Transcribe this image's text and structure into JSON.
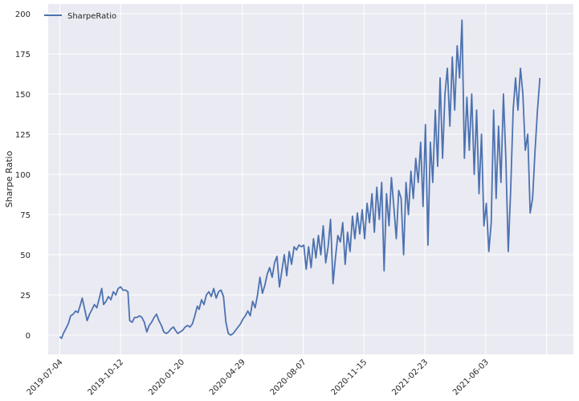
{
  "chart_data": {
    "type": "line",
    "title": "",
    "xlabel": "",
    "ylabel": "Sharpe Ratio",
    "grid": true,
    "legend_position": "top-left",
    "x_tick_labels": [
      "2019-07-04",
      "2019-10-12",
      "2020-01-20",
      "2020-04-29",
      "2020-08-07",
      "2020-11-15",
      "2021-02-23",
      "2021-06-03"
    ],
    "y_ticks": [
      0,
      25,
      50,
      75,
      100,
      125,
      150,
      175,
      200
    ],
    "xlim": [
      "2019-06-15",
      "2021-10-25"
    ],
    "ylim": [
      -12,
      206
    ],
    "series": [
      {
        "name": "SharpeRatio",
        "color": "#4c72b0",
        "points": [
          [
            "2019-07-04",
            -1
          ],
          [
            "2019-07-07",
            -2
          ],
          [
            "2019-07-10",
            1
          ],
          [
            "2019-07-14",
            4
          ],
          [
            "2019-07-18",
            7
          ],
          [
            "2019-07-22",
            12
          ],
          [
            "2019-07-26",
            13
          ],
          [
            "2019-07-30",
            15
          ],
          [
            "2019-08-03",
            14
          ],
          [
            "2019-08-07",
            19
          ],
          [
            "2019-08-10",
            23
          ],
          [
            "2019-08-14",
            16
          ],
          [
            "2019-08-18",
            9
          ],
          [
            "2019-08-22",
            13
          ],
          [
            "2019-08-26",
            16
          ],
          [
            "2019-08-30",
            19
          ],
          [
            "2019-09-03",
            17
          ],
          [
            "2019-09-07",
            23
          ],
          [
            "2019-09-11",
            29
          ],
          [
            "2019-09-14",
            19
          ],
          [
            "2019-09-18",
            21
          ],
          [
            "2019-09-22",
            24
          ],
          [
            "2019-09-26",
            22
          ],
          [
            "2019-09-30",
            27
          ],
          [
            "2019-10-04",
            25
          ],
          [
            "2019-10-08",
            29
          ],
          [
            "2019-10-12",
            30
          ],
          [
            "2019-10-16",
            28
          ],
          [
            "2019-10-20",
            28
          ],
          [
            "2019-10-24",
            27
          ],
          [
            "2019-10-27",
            9
          ],
          [
            "2019-10-31",
            8
          ],
          [
            "2019-11-04",
            11
          ],
          [
            "2019-11-08",
            11
          ],
          [
            "2019-11-12",
            12
          ],
          [
            "2019-11-16",
            11
          ],
          [
            "2019-11-20",
            8
          ],
          [
            "2019-11-24",
            2
          ],
          [
            "2019-11-28",
            6
          ],
          [
            "2019-12-02",
            8
          ],
          [
            "2019-12-06",
            11
          ],
          [
            "2019-12-10",
            13
          ],
          [
            "2019-12-14",
            9
          ],
          [
            "2019-12-18",
            6
          ],
          [
            "2019-12-22",
            2
          ],
          [
            "2019-12-26",
            1
          ],
          [
            "2019-12-30",
            2
          ],
          [
            "2020-01-03",
            4
          ],
          [
            "2020-01-07",
            5
          ],
          [
            "2020-01-10",
            3
          ],
          [
            "2020-01-14",
            1
          ],
          [
            "2020-01-18",
            2
          ],
          [
            "2020-01-22",
            3
          ],
          [
            "2020-01-26",
            5
          ],
          [
            "2020-01-30",
            6
          ],
          [
            "2020-02-03",
            5
          ],
          [
            "2020-02-07",
            7
          ],
          [
            "2020-02-11",
            12
          ],
          [
            "2020-02-15",
            18
          ],
          [
            "2020-02-18",
            16
          ],
          [
            "2020-02-22",
            22
          ],
          [
            "2020-02-26",
            19
          ],
          [
            "2020-03-01",
            25
          ],
          [
            "2020-03-05",
            27
          ],
          [
            "2020-03-09",
            24
          ],
          [
            "2020-03-13",
            29
          ],
          [
            "2020-03-17",
            23
          ],
          [
            "2020-03-21",
            27
          ],
          [
            "2020-03-25",
            28
          ],
          [
            "2020-03-29",
            24
          ],
          [
            "2020-04-02",
            8
          ],
          [
            "2020-04-06",
            1
          ],
          [
            "2020-04-10",
            0
          ],
          [
            "2020-04-14",
            1
          ],
          [
            "2020-04-18",
            3
          ],
          [
            "2020-04-22",
            5
          ],
          [
            "2020-04-26",
            7
          ],
          [
            "2020-04-30",
            10
          ],
          [
            "2020-05-04",
            12
          ],
          [
            "2020-05-08",
            15
          ],
          [
            "2020-05-12",
            12
          ],
          [
            "2020-05-16",
            21
          ],
          [
            "2020-05-20",
            17
          ],
          [
            "2020-05-24",
            25
          ],
          [
            "2020-05-28",
            36
          ],
          [
            "2020-06-01",
            26
          ],
          [
            "2020-06-05",
            31
          ],
          [
            "2020-06-09",
            38
          ],
          [
            "2020-06-13",
            42
          ],
          [
            "2020-06-17",
            36
          ],
          [
            "2020-06-21",
            45
          ],
          [
            "2020-06-25",
            49
          ],
          [
            "2020-06-29",
            30
          ],
          [
            "2020-07-03",
            40
          ],
          [
            "2020-07-07",
            50
          ],
          [
            "2020-07-11",
            37
          ],
          [
            "2020-07-15",
            52
          ],
          [
            "2020-07-19",
            44
          ],
          [
            "2020-07-23",
            55
          ],
          [
            "2020-07-27",
            53
          ],
          [
            "2020-07-31",
            56
          ],
          [
            "2020-08-04",
            55
          ],
          [
            "2020-08-08",
            56
          ],
          [
            "2020-08-12",
            41
          ],
          [
            "2020-08-16",
            55
          ],
          [
            "2020-08-20",
            42
          ],
          [
            "2020-08-24",
            60
          ],
          [
            "2020-08-28",
            48
          ],
          [
            "2020-09-01",
            62
          ],
          [
            "2020-09-05",
            50
          ],
          [
            "2020-09-09",
            68
          ],
          [
            "2020-09-13",
            45
          ],
          [
            "2020-09-17",
            55
          ],
          [
            "2020-09-21",
            72
          ],
          [
            "2020-09-25",
            32
          ],
          [
            "2020-09-29",
            48
          ],
          [
            "2020-10-03",
            62
          ],
          [
            "2020-10-07",
            58
          ],
          [
            "2020-10-11",
            70
          ],
          [
            "2020-10-15",
            44
          ],
          [
            "2020-10-19",
            64
          ],
          [
            "2020-10-23",
            52
          ],
          [
            "2020-10-27",
            74
          ],
          [
            "2020-10-31",
            60
          ],
          [
            "2020-11-04",
            76
          ],
          [
            "2020-11-08",
            63
          ],
          [
            "2020-11-12",
            78
          ],
          [
            "2020-11-16",
            60
          ],
          [
            "2020-11-20",
            82
          ],
          [
            "2020-11-24",
            70
          ],
          [
            "2020-11-28",
            88
          ],
          [
            "2020-12-02",
            64
          ],
          [
            "2020-12-06",
            92
          ],
          [
            "2020-12-10",
            72
          ],
          [
            "2020-12-14",
            95
          ],
          [
            "2020-12-18",
            40
          ],
          [
            "2020-12-22",
            88
          ],
          [
            "2020-12-26",
            68
          ],
          [
            "2020-12-30",
            98
          ],
          [
            "2021-01-03",
            80
          ],
          [
            "2021-01-07",
            60
          ],
          [
            "2021-01-11",
            90
          ],
          [
            "2021-01-15",
            85
          ],
          [
            "2021-01-19",
            50
          ],
          [
            "2021-01-23",
            95
          ],
          [
            "2021-01-27",
            75
          ],
          [
            "2021-01-31",
            102
          ],
          [
            "2021-02-04",
            85
          ],
          [
            "2021-02-08",
            110
          ],
          [
            "2021-02-12",
            95
          ],
          [
            "2021-02-16",
            120
          ],
          [
            "2021-02-20",
            80
          ],
          [
            "2021-02-24",
            131
          ],
          [
            "2021-02-28",
            56
          ],
          [
            "2021-03-04",
            120
          ],
          [
            "2021-03-08",
            95
          ],
          [
            "2021-03-12",
            140
          ],
          [
            "2021-03-16",
            105
          ],
          [
            "2021-03-20",
            160
          ],
          [
            "2021-03-24",
            110
          ],
          [
            "2021-03-28",
            150
          ],
          [
            "2021-04-01",
            166
          ],
          [
            "2021-04-05",
            130
          ],
          [
            "2021-04-09",
            173
          ],
          [
            "2021-04-13",
            140
          ],
          [
            "2021-04-17",
            180
          ],
          [
            "2021-04-21",
            160
          ],
          [
            "2021-04-25",
            196
          ],
          [
            "2021-04-29",
            110
          ],
          [
            "2021-05-03",
            148
          ],
          [
            "2021-05-07",
            115
          ],
          [
            "2021-05-11",
            150
          ],
          [
            "2021-05-15",
            100
          ],
          [
            "2021-05-19",
            140
          ],
          [
            "2021-05-23",
            88
          ],
          [
            "2021-05-27",
            125
          ],
          [
            "2021-05-31",
            68
          ],
          [
            "2021-06-04",
            82
          ],
          [
            "2021-06-08",
            52
          ],
          [
            "2021-06-12",
            70
          ],
          [
            "2021-06-16",
            140
          ],
          [
            "2021-06-20",
            85
          ],
          [
            "2021-06-24",
            130
          ],
          [
            "2021-06-28",
            95
          ],
          [
            "2021-07-02",
            150
          ],
          [
            "2021-07-06",
            110
          ],
          [
            "2021-07-10",
            52
          ],
          [
            "2021-07-14",
            90
          ],
          [
            "2021-07-18",
            140
          ],
          [
            "2021-07-22",
            160
          ],
          [
            "2021-07-26",
            140
          ],
          [
            "2021-07-30",
            166
          ],
          [
            "2021-08-03",
            150
          ],
          [
            "2021-08-07",
            115
          ],
          [
            "2021-08-11",
            125
          ],
          [
            "2021-08-15",
            76
          ],
          [
            "2021-08-19",
            85
          ],
          [
            "2021-08-23",
            115
          ],
          [
            "2021-08-27",
            140
          ],
          [
            "2021-08-31",
            160
          ]
        ]
      }
    ]
  }
}
